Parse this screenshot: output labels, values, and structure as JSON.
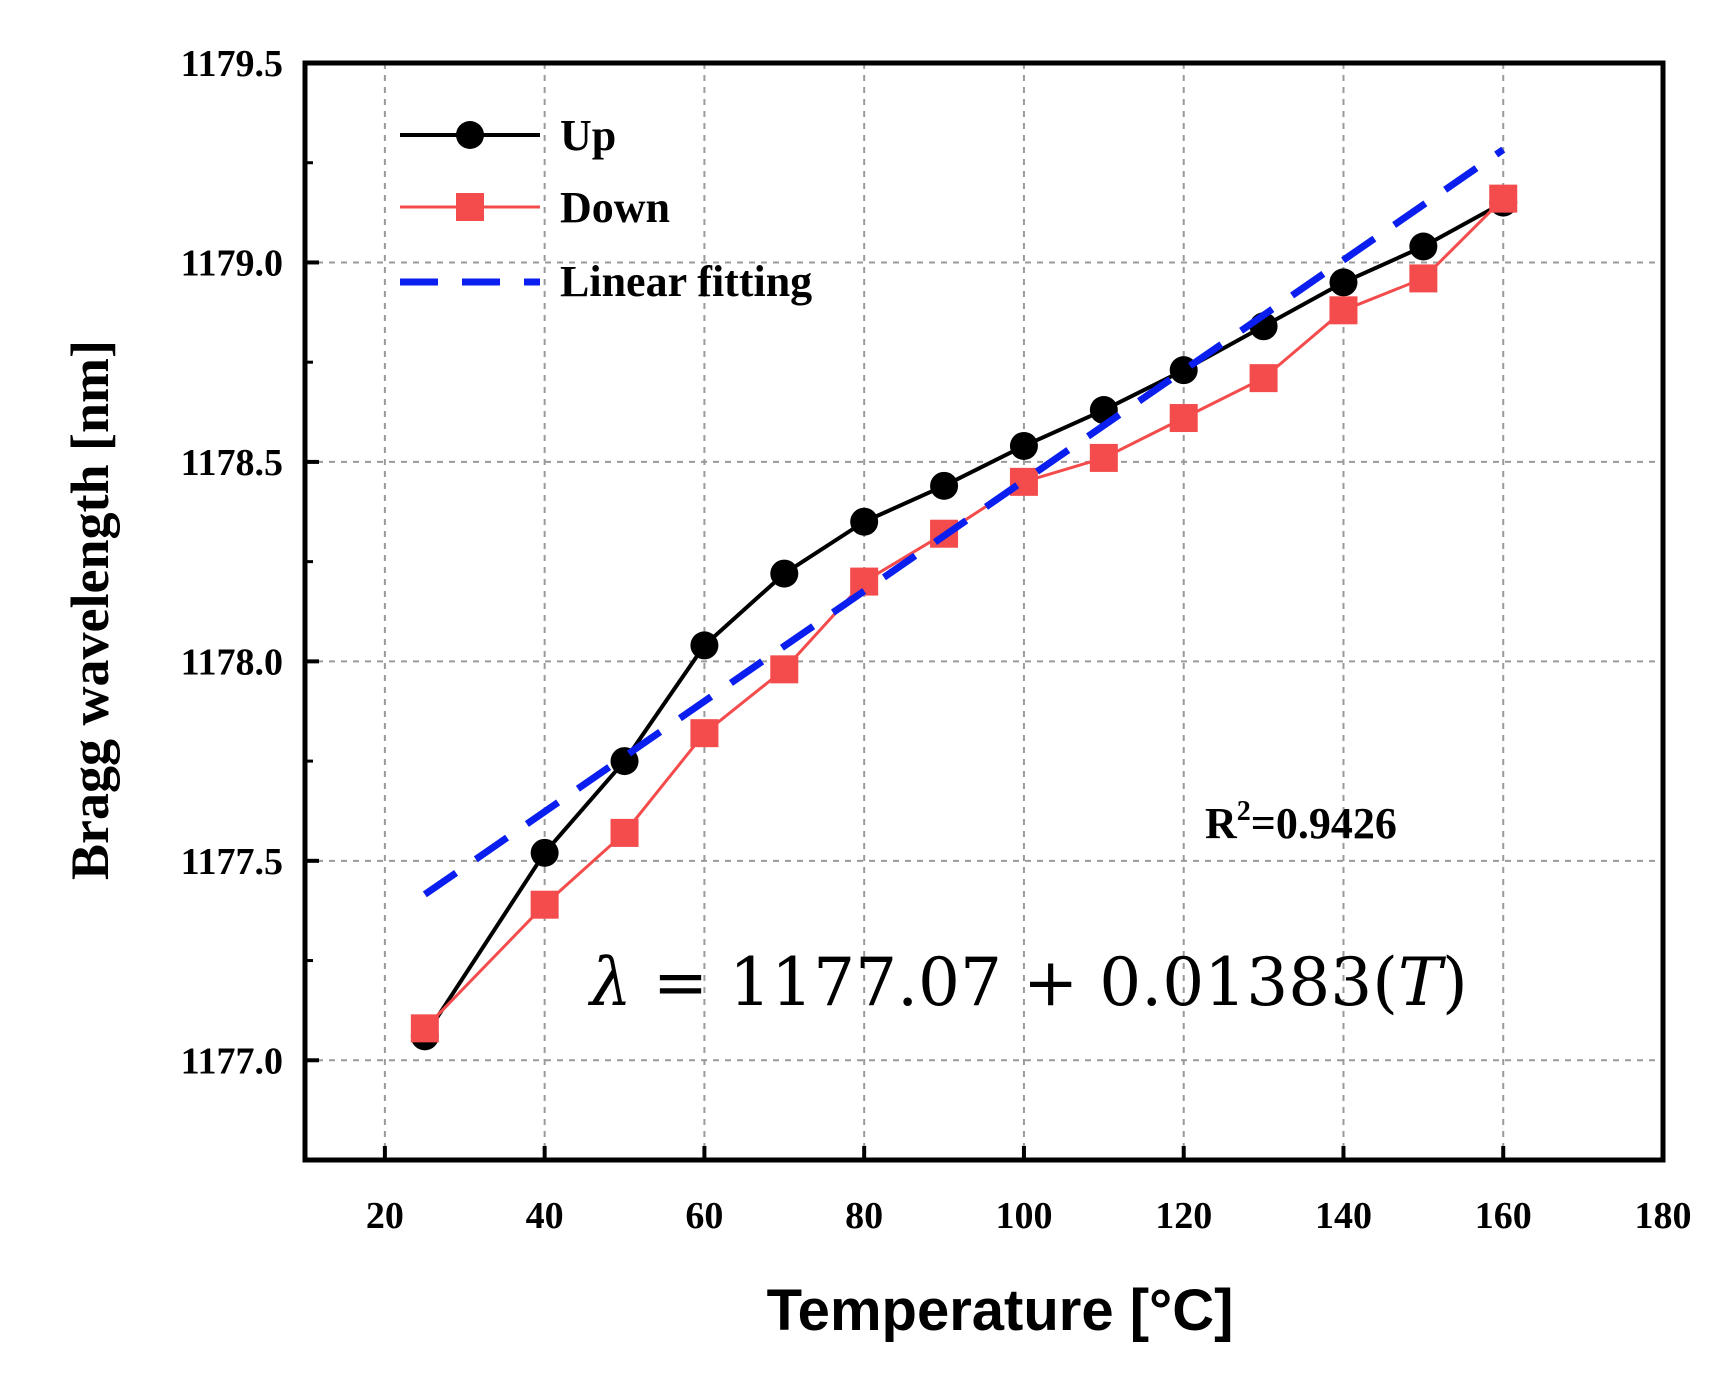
{
  "chart_data": {
    "type": "line",
    "title": "",
    "xlabel": "Temperature [°C]",
    "ylabel": "Bragg wavelength [nm]",
    "xlim": [
      10,
      180
    ],
    "ylim": [
      1176.75,
      1179.5
    ],
    "x_ticks": [
      20,
      40,
      60,
      80,
      100,
      120,
      140,
      160,
      180
    ],
    "x_tick_labels": [
      "20",
      "40",
      "60",
      "80",
      "100",
      "120",
      "140",
      "160",
      "180"
    ],
    "y_ticks": [
      1177.0,
      1177.5,
      1178.0,
      1178.5,
      1179.0,
      1179.5
    ],
    "y_tick_labels": [
      "1177.0",
      "1177.5",
      "1178.0",
      "1178.5",
      "1179.0",
      "1179.5"
    ],
    "grid": true,
    "legend_position": "top-left",
    "series": [
      {
        "name": "Up",
        "color": "#000000",
        "marker": "circle",
        "x": [
          25,
          40,
          50,
          60,
          70,
          80,
          90,
          100,
          110,
          120,
          130,
          140,
          150,
          160
        ],
        "values": [
          1177.06,
          1177.52,
          1177.75,
          1178.04,
          1178.22,
          1178.35,
          1178.44,
          1178.54,
          1178.63,
          1178.73,
          1178.84,
          1178.95,
          1179.04,
          1179.15
        ]
      },
      {
        "name": "Down",
        "color": "#f44c4c",
        "marker": "square",
        "x": [
          25,
          40,
          50,
          60,
          70,
          80,
          90,
          100,
          110,
          120,
          130,
          140,
          150,
          160
        ],
        "values": [
          1177.08,
          1177.39,
          1177.57,
          1177.82,
          1177.98,
          1178.2,
          1178.32,
          1178.45,
          1178.51,
          1178.61,
          1178.71,
          1178.88,
          1178.96,
          1179.16
        ]
      },
      {
        "name": "Linear fitting",
        "color": "#0a1ef0",
        "style": "dashed",
        "slope": 0.01383,
        "intercept": 1177.07,
        "x": [
          25,
          160
        ],
        "values": [
          1177.41575,
          1179.2828
        ]
      }
    ],
    "annotations": {
      "r2_prefix": "R",
      "r2_sup": "2",
      "r2_value": "=0.9426",
      "eq_lambda": "λ",
      "eq_mid": " = 1177.07 + 0.01383(",
      "eq_T": "T",
      "eq_end": ")"
    }
  }
}
